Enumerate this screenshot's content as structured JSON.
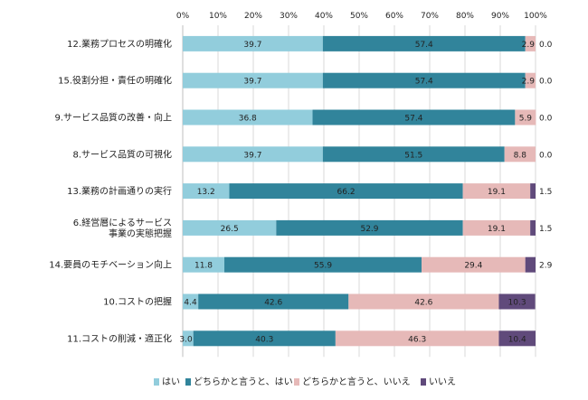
{
  "chart_data": {
    "type": "bar",
    "orientation": "horizontal",
    "stacked": true,
    "title": "",
    "xlabel": "",
    "ylabel": "",
    "xlim": [
      0,
      100
    ],
    "x_ticks": [
      "0%",
      "10%",
      "20%",
      "30%",
      "40%",
      "50%",
      "60%",
      "70%",
      "80%",
      "90%",
      "100%"
    ],
    "grid": "vertical",
    "legend_position": "bottom",
    "categories": [
      [
        "12.業務プロセスの明確化"
      ],
      [
        "15.役割分担・責任の明確化"
      ],
      [
        "9.サービス品質の改善・向上"
      ],
      [
        "8.サービス品質の可視化"
      ],
      [
        "13.業務の計画通りの実行"
      ],
      [
        "6.経営層によるサービス",
        "事業の実態把握"
      ],
      [
        "14.要員のモチベーション向上"
      ],
      [
        "10.コストの把握"
      ],
      [
        "11.コストの削減・適正化"
      ]
    ],
    "series": [
      {
        "name": "はい",
        "color": "#92cddc",
        "label_color": "#222222",
        "values": [
          39.7,
          39.7,
          36.8,
          39.7,
          13.2,
          26.5,
          11.8,
          4.4,
          3.0
        ],
        "labels": [
          "39.7",
          "39.7",
          "36.8",
          "39.7",
          "13.2",
          "26.5",
          "11.8",
          "4.4",
          "3.0"
        ]
      },
      {
        "name": "どちらかと言うと、はい",
        "color": "#31849b",
        "label_color": "#222222",
        "values": [
          57.4,
          57.4,
          57.4,
          51.5,
          66.2,
          52.9,
          55.9,
          42.6,
          40.3
        ],
        "labels": [
          "57.4",
          "57.4",
          "57.4",
          "51.5",
          "66.2",
          "52.9",
          "55.9",
          "42.6",
          "40.3"
        ]
      },
      {
        "name": "どちらかと言うと、いいえ",
        "color": "#e6b9b8",
        "label_color": "#222222",
        "values": [
          2.9,
          2.9,
          5.9,
          8.8,
          19.1,
          19.1,
          29.4,
          42.6,
          46.3
        ],
        "labels": [
          "2.9",
          "2.9",
          "5.9",
          "8.8",
          "19.1",
          "19.1",
          "29.4",
          "42.6",
          "46.3"
        ]
      },
      {
        "name": "いいえ",
        "color": "#604a7b",
        "label_color": "#ffffff",
        "values": [
          0.0,
          0.0,
          0.0,
          0.0,
          1.5,
          1.5,
          2.9,
          10.3,
          10.4
        ],
        "labels": [
          "0.0",
          "0.0",
          "0.0",
          "0.0",
          "1.5",
          "1.5",
          "2.9",
          "10.3",
          "10.4"
        ]
      }
    ]
  }
}
